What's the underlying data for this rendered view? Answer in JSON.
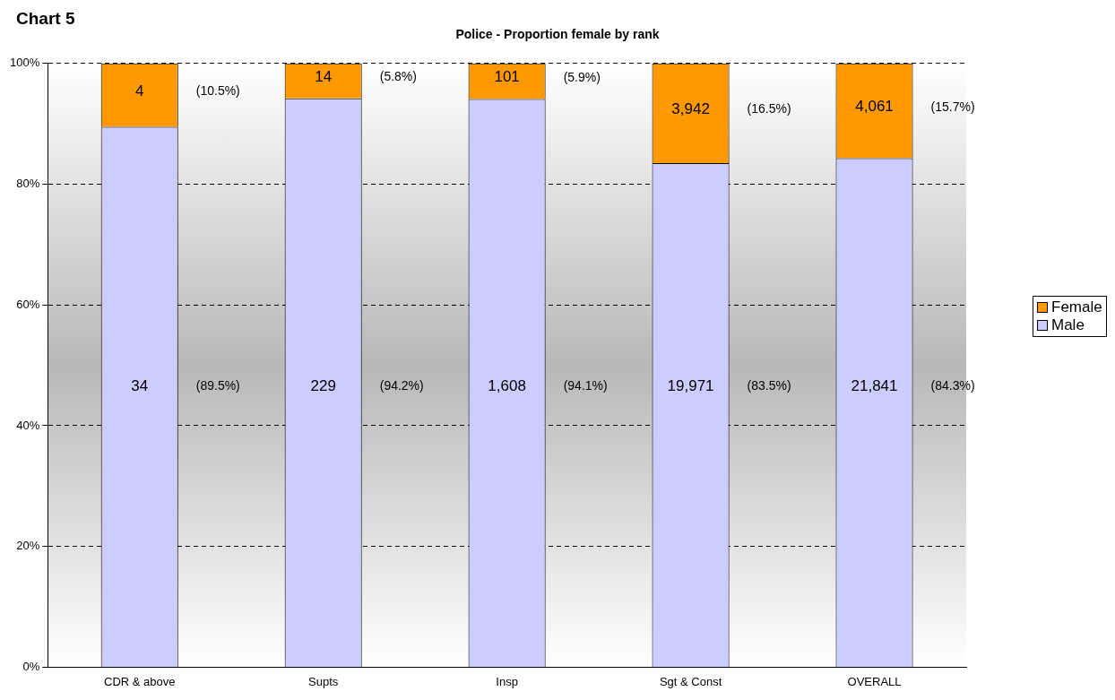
{
  "chart_data": {
    "type": "bar",
    "title": "Chart 5",
    "subtitle": "Police - Proportion female by rank",
    "categories": [
      "CDR & above",
      "Supts",
      "Insp",
      "Sgt & Const",
      "OVERALL"
    ],
    "stacked": true,
    "series": [
      {
        "name": "Male",
        "color": "#ccccff",
        "values": [
          89.5,
          94.2,
          94.1,
          83.5,
          84.3
        ],
        "value_labels": [
          "34 (89.5%)",
          "229 (94.2%)",
          "1,608 (94.1%)",
          "19,971 (83.5%)",
          "21,841 (84.3%)"
        ]
      },
      {
        "name": "Female",
        "color": "#ff9900",
        "values": [
          10.5,
          5.8,
          5.9,
          16.5,
          15.7
        ],
        "value_labels": [
          "4 (10.5%)",
          "14 (5.8%)",
          "101 (5.9%)",
          "3,942 (16.5%)",
          "4,061 (15.7%)"
        ]
      }
    ],
    "ylim": [
      0,
      100
    ],
    "yticks": [
      {
        "value": 0,
        "label": "0%"
      },
      {
        "value": 20,
        "label": "20%"
      },
      {
        "value": 40,
        "label": "40%"
      },
      {
        "value": 60,
        "label": "60%"
      },
      {
        "value": 80,
        "label": "80%"
      },
      {
        "value": 100,
        "label": "100%"
      }
    ],
    "grid": "y",
    "line_style": "dashed",
    "legend": "right"
  }
}
